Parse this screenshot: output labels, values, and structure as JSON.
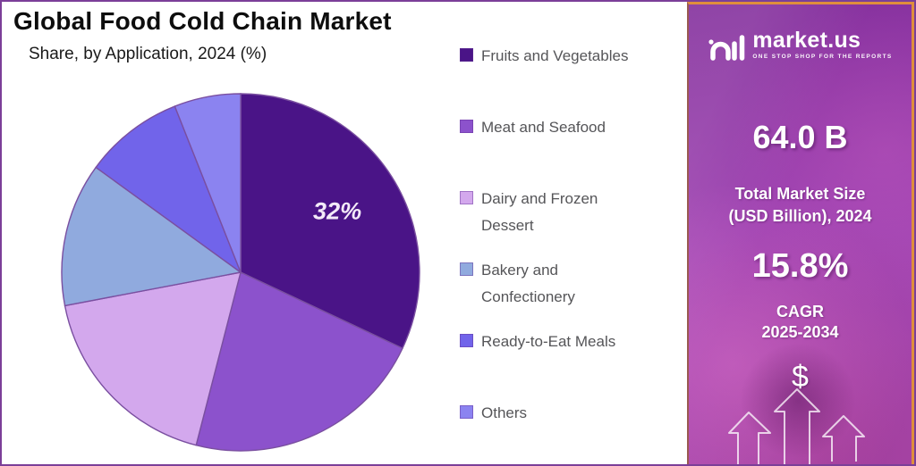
{
  "title": "Global Food Cold Chain Market",
  "subtitle": "Share, by Application, 2024 (%)",
  "chart_data": {
    "type": "pie",
    "title": "Global Food Cold Chain Market",
    "subtitle": "Share, by Application, 2024 (%)",
    "categories": [
      "Fruits and Vegetables",
      "Meat and Seafood",
      "Dairy and Frozen Dessert",
      "Bakery and Confectionery",
      "Ready-to-Eat Meals",
      "Others"
    ],
    "values": [
      32,
      22,
      18,
      13,
      9,
      6
    ],
    "colors": [
      "#4a1487",
      "#8c52cc",
      "#d3a8ed",
      "#90aade",
      "#7164ea",
      "#8b83f0"
    ],
    "data_labels": [
      "32%",
      "",
      "",
      "",
      "",
      ""
    ],
    "legend_lines": [
      [
        "Fruits and Vegetables"
      ],
      [
        "Meat and Seafood"
      ],
      [
        "Dairy and Frozen",
        "Dessert"
      ],
      [
        "Bakery and",
        "Confectionery"
      ],
      [
        "Ready-to-Eat Meals"
      ],
      [
        "Others"
      ]
    ],
    "start_angle_deg": 0,
    "direction": "clockwise",
    "legend_position": "right",
    "slice_stroke": "#7a4fa0"
  },
  "side_panel": {
    "logo_name": "market.us",
    "logo_tagline": "ONE STOP SHOP FOR THE REPORTS",
    "market_size_value": "64.0 B",
    "market_size_label_line1": "Total Market Size",
    "market_size_label_line2": "(USD Billion), 2024",
    "cagr_value": "15.8%",
    "cagr_label_line1": "CAGR",
    "cagr_label_line2": "2025-2034",
    "dollar_symbol": "$"
  },
  "colors": {
    "panel_border": "#df8e3c",
    "panel_purple": "#9d41b0",
    "outer_border": "#7b3f98",
    "legend_text": "#555558",
    "title_text": "#0d0d0d"
  }
}
